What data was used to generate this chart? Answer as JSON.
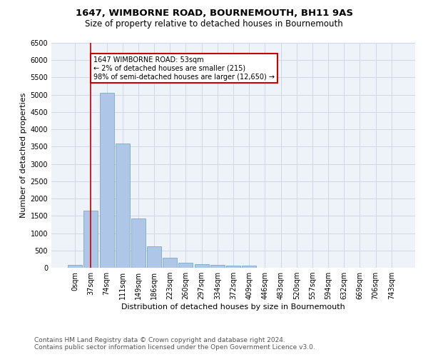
{
  "title": "1647, WIMBORNE ROAD, BOURNEMOUTH, BH11 9AS",
  "subtitle": "Size of property relative to detached houses in Bournemouth",
  "xlabel": "Distribution of detached houses by size in Bournemouth",
  "ylabel": "Number of detached properties",
  "bar_labels": [
    "0sqm",
    "37sqm",
    "74sqm",
    "111sqm",
    "149sqm",
    "186sqm",
    "223sqm",
    "260sqm",
    "297sqm",
    "334sqm",
    "372sqm",
    "409sqm",
    "446sqm",
    "483sqm",
    "520sqm",
    "557sqm",
    "594sqm",
    "632sqm",
    "669sqm",
    "706sqm",
    "743sqm"
  ],
  "bar_values": [
    75,
    1650,
    5050,
    3600,
    1420,
    620,
    295,
    150,
    110,
    80,
    60,
    55,
    0,
    0,
    0,
    0,
    0,
    0,
    0,
    0,
    0
  ],
  "bar_color": "#aec6e8",
  "bar_edge_color": "#6a9fc0",
  "ylim": [
    0,
    6500
  ],
  "yticks": [
    0,
    500,
    1000,
    1500,
    2000,
    2500,
    3000,
    3500,
    4000,
    4500,
    5000,
    5500,
    6000,
    6500
  ],
  "grid_color": "#d0d8e8",
  "annotation_box_text": "1647 WIMBORNE ROAD: 53sqm\n← 2% of detached houses are smaller (215)\n98% of semi-detached houses are larger (12,650) →",
  "annotation_box_color": "#cc0000",
  "vline_x": 1.0,
  "vline_color": "#cc0000",
  "footer1": "Contains HM Land Registry data © Crown copyright and database right 2024.",
  "footer2": "Contains public sector information licensed under the Open Government Licence v3.0.",
  "bg_color": "#eef2f9",
  "fig_bg_color": "#ffffff",
  "title_fontsize": 9.5,
  "subtitle_fontsize": 8.5,
  "axis_label_fontsize": 8,
  "tick_fontsize": 7,
  "annot_fontsize": 7,
  "footer_fontsize": 6.5
}
